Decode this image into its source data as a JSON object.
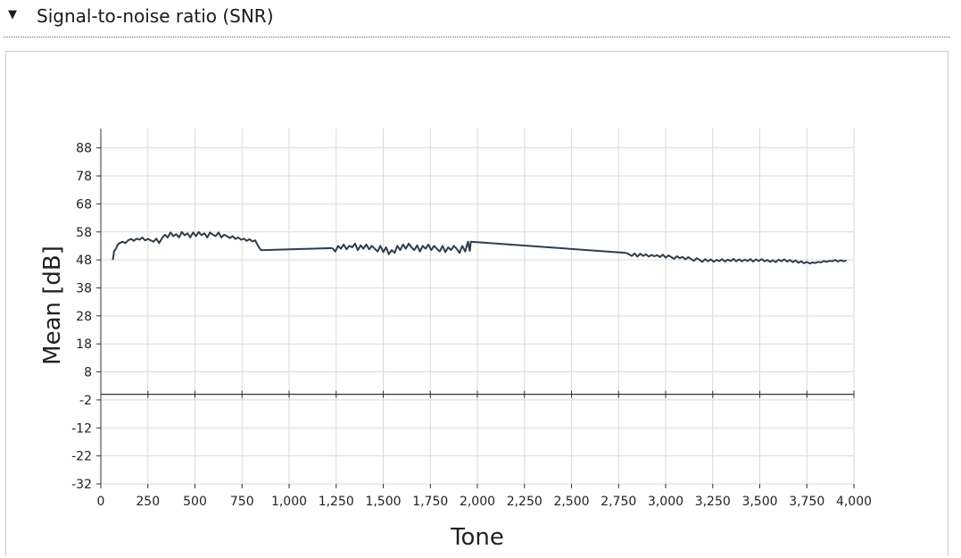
{
  "section": {
    "title": "Signal-to-noise ratio (SNR)",
    "toggle_glyph": "▼",
    "toggle_icon": "caret-down-icon"
  },
  "chart_data": {
    "type": "line",
    "title": "",
    "xlabel": "Tone",
    "ylabel": "Mean [dB]",
    "xlim": [
      0,
      4000
    ],
    "ylim": [
      -32,
      93
    ],
    "xticks": [
      0,
      250,
      500,
      750,
      1000,
      1250,
      1500,
      1750,
      2000,
      2250,
      2500,
      2750,
      3000,
      3250,
      3500,
      3750,
      4000
    ],
    "xtick_labels": [
      "0",
      "250",
      "500",
      "750",
      "1,000",
      "1,250",
      "1,500",
      "1,750",
      "2,000",
      "2,250",
      "2,500",
      "2,750",
      "3,000",
      "3,250",
      "3,500",
      "3,750",
      "4,000"
    ],
    "yticks": [
      88,
      78,
      68,
      58,
      48,
      38,
      28,
      18,
      8,
      -2,
      -12,
      -22,
      -32
    ],
    "ytick_labels": [
      "88",
      "78",
      "68",
      "58",
      "48",
      "38",
      "28",
      "18",
      "8",
      "-2",
      "-12",
      "-22",
      "-32"
    ],
    "grid": true,
    "zero_line": 0,
    "line_color": "#2f3d4a",
    "series": [
      {
        "segments": [
          [
            [
              64,
              48
            ],
            [
              70,
              51
            ],
            [
              80,
              52
            ],
            [
              90,
              53.5
            ],
            [
              100,
              54
            ],
            [
              115,
              54.5
            ],
            [
              130,
              54
            ],
            [
              145,
              55
            ],
            [
              160,
              55.5
            ],
            [
              175,
              54.8
            ],
            [
              190,
              55.6
            ],
            [
              205,
              55.2
            ],
            [
              220,
              56
            ],
            [
              235,
              55
            ],
            [
              250,
              55.5
            ],
            [
              265,
              55
            ],
            [
              280,
              54.5
            ],
            [
              295,
              55.6
            ],
            [
              310,
              54
            ],
            [
              325,
              55.8
            ],
            [
              340,
              57
            ],
            [
              355,
              56
            ],
            [
              370,
              57.8
            ],
            [
              385,
              56.5
            ],
            [
              400,
              57.2
            ],
            [
              415,
              56
            ],
            [
              430,
              58
            ],
            [
              445,
              56.8
            ],
            [
              460,
              57.5
            ],
            [
              475,
              56
            ],
            [
              490,
              57.8
            ],
            [
              505,
              56.5
            ],
            [
              520,
              58
            ],
            [
              535,
              56.8
            ],
            [
              550,
              57.5
            ],
            [
              565,
              56
            ],
            [
              580,
              57.8
            ],
            [
              595,
              57
            ],
            [
              610,
              56.5
            ],
            [
              625,
              57.8
            ],
            [
              640,
              56
            ],
            [
              655,
              57
            ],
            [
              670,
              56.5
            ],
            [
              685,
              55.8
            ],
            [
              700,
              56.5
            ],
            [
              715,
              55.5
            ],
            [
              730,
              56
            ],
            [
              745,
              55.2
            ],
            [
              760,
              55.6
            ],
            [
              775,
              54.8
            ],
            [
              790,
              55.4
            ],
            [
              805,
              54.6
            ],
            [
              820,
              55
            ],
            [
              835,
              53
            ],
            [
              850,
              51.5
            ],
            [
              865,
              51.5
            ]
          ],
          [
            [
              865,
              51.5
            ],
            [
              1230,
              52.2
            ]
          ],
          [
            [
              1230,
              52.2
            ],
            [
              1245,
              51
            ],
            [
              1260,
              53
            ],
            [
              1275,
              52
            ],
            [
              1290,
              53.5
            ],
            [
              1305,
              51.8
            ],
            [
              1320,
              53
            ],
            [
              1335,
              52.5
            ],
            [
              1350,
              53.8
            ],
            [
              1365,
              51.5
            ],
            [
              1380,
              53.2
            ],
            [
              1395,
              52
            ],
            [
              1410,
              53.5
            ],
            [
              1425,
              51.8
            ],
            [
              1440,
              53
            ],
            [
              1455,
              52
            ],
            [
              1470,
              51
            ],
            [
              1485,
              53
            ],
            [
              1500,
              50.8
            ],
            [
              1515,
              52.5
            ],
            [
              1530,
              50
            ],
            [
              1545,
              51.5
            ],
            [
              1560,
              50.5
            ],
            [
              1575,
              53
            ],
            [
              1590,
              51.5
            ],
            [
              1605,
              53.5
            ],
            [
              1620,
              52
            ],
            [
              1635,
              53.8
            ],
            [
              1650,
              52.5
            ],
            [
              1665,
              51.5
            ],
            [
              1680,
              53.2
            ],
            [
              1695,
              51
            ],
            [
              1710,
              53
            ],
            [
              1725,
              52
            ],
            [
              1740,
              53.5
            ],
            [
              1755,
              51.5
            ],
            [
              1770,
              53
            ],
            [
              1785,
              52
            ],
            [
              1800,
              51
            ],
            [
              1815,
              53
            ],
            [
              1830,
              50.8
            ],
            [
              1845,
              52.5
            ],
            [
              1860,
              51.5
            ],
            [
              1875,
              53
            ],
            [
              1890,
              52
            ],
            [
              1905,
              50.5
            ],
            [
              1920,
              53
            ],
            [
              1935,
              51
            ],
            [
              1950,
              54.5
            ],
            [
              1960,
              51
            ]
          ],
          [
            [
              1960,
              51
            ],
            [
              1965,
              54.5
            ],
            [
              2790,
              50.5
            ]
          ],
          [
            [
              2790,
              50.5
            ],
            [
              2805,
              50
            ],
            [
              2820,
              49.4
            ],
            [
              2835,
              50.3
            ],
            [
              2850,
              49.2
            ],
            [
              2865,
              50.2
            ],
            [
              2880,
              49.4
            ],
            [
              2895,
              50
            ],
            [
              2910,
              49.2
            ],
            [
              2925,
              49.8
            ],
            [
              2940,
              49.3
            ],
            [
              2955,
              49.7
            ],
            [
              2970,
              49
            ],
            [
              2985,
              49.9
            ],
            [
              3000,
              48.8
            ],
            [
              3015,
              49.6
            ],
            [
              3030,
              49
            ],
            [
              3045,
              48.4
            ],
            [
              3060,
              49.3
            ],
            [
              3075,
              48.6
            ],
            [
              3090,
              49.1
            ],
            [
              3105,
              48.2
            ],
            [
              3120,
              49
            ],
            [
              3135,
              48.3
            ],
            [
              3150,
              47.7
            ],
            [
              3165,
              48.6
            ],
            [
              3180,
              48
            ],
            [
              3195,
              47.3
            ],
            [
              3210,
              48.3
            ],
            [
              3225,
              47.5
            ],
            [
              3240,
              48.2
            ],
            [
              3255,
              47.3
            ],
            [
              3270,
              48
            ],
            [
              3285,
              47.6
            ],
            [
              3300,
              48.3
            ],
            [
              3315,
              47.4
            ],
            [
              3330,
              48.1
            ],
            [
              3345,
              47.6
            ],
            [
              3360,
              48.4
            ],
            [
              3375,
              47.5
            ],
            [
              3390,
              48.2
            ],
            [
              3405,
              47.5
            ],
            [
              3420,
              48.1
            ],
            [
              3435,
              47.6
            ],
            [
              3450,
              48.3
            ],
            [
              3465,
              47.4
            ],
            [
              3480,
              48.2
            ],
            [
              3495,
              47.6
            ],
            [
              3510,
              48.3
            ],
            [
              3525,
              47.5
            ],
            [
              3540,
              48
            ],
            [
              3555,
              47.3
            ],
            [
              3570,
              47.9
            ],
            [
              3585,
              47.2
            ],
            [
              3600,
              48.1
            ],
            [
              3615,
              47.5
            ],
            [
              3630,
              48.2
            ],
            [
              3645,
              47.4
            ],
            [
              3660,
              48
            ],
            [
              3675,
              47.2
            ],
            [
              3690,
              47.8
            ],
            [
              3705,
              47
            ],
            [
              3720,
              47.5
            ],
            [
              3735,
              46.8
            ],
            [
              3750,
              47.3
            ],
            [
              3765,
              46.7
            ],
            [
              3780,
              47.1
            ],
            [
              3795,
              46.9
            ],
            [
              3810,
              47.3
            ],
            [
              3825,
              47.1
            ],
            [
              3840,
              47.6
            ],
            [
              3855,
              47.3
            ],
            [
              3870,
              47.7
            ],
            [
              3885,
              47.5
            ],
            [
              3900,
              48
            ],
            [
              3915,
              47.4
            ],
            [
              3930,
              47.9
            ],
            [
              3945,
              47.5
            ],
            [
              3960,
              47.8
            ]
          ]
        ]
      }
    ]
  }
}
